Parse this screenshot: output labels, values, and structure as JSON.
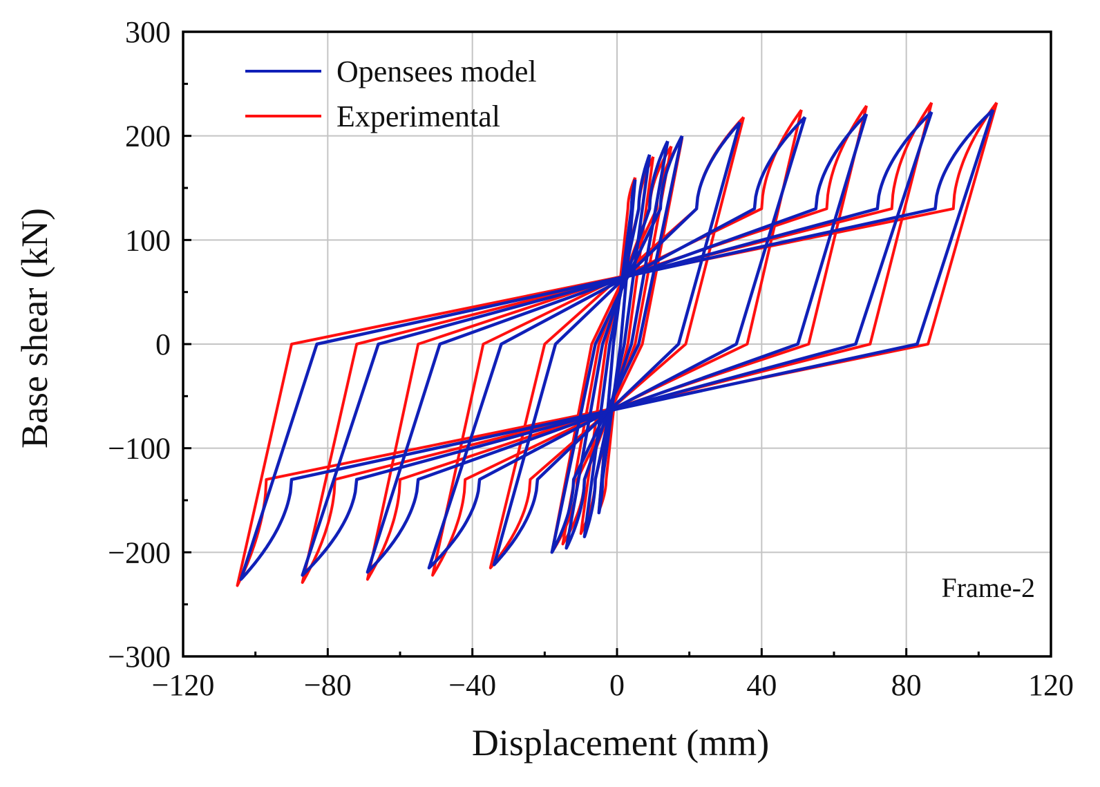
{
  "chart_data": {
    "type": "line",
    "title": "",
    "xlabel": "Displacement (mm)",
    "ylabel": "Base shear (kN)",
    "xlim": [
      -120,
      120
    ],
    "ylim": [
      -300,
      300
    ],
    "xticks": [
      -120,
      -80,
      -40,
      0,
      40,
      80,
      120
    ],
    "yticks": [
      -300,
      -200,
      -100,
      0,
      100,
      200,
      300
    ],
    "xtick_labels": [
      "−120",
      "−80",
      "−40",
      "0",
      "40",
      "80",
      "120"
    ],
    "ytick_labels": [
      "−300",
      "−200",
      "−100",
      "0",
      "100",
      "200",
      "300"
    ],
    "grid": true,
    "legend_position": "top-left",
    "annotation": "Frame-2",
    "colors": {
      "opensees": "#1020b8",
      "experimental": "#ff1010"
    },
    "series": [
      {
        "name": "Opensees model",
        "color": "#1020b8",
        "loops": [
          {
            "amp": 5,
            "pos_peak": 158,
            "neg_peak": -162,
            "pos_zero": 1,
            "neg_zero": -1,
            "pos_knee": 4,
            "neg_knee": -4,
            "pos_at_zero": 130,
            "neg_at_zero": -135
          },
          {
            "amp": 9,
            "pos_peak": 182,
            "neg_peak": -185,
            "pos_zero": 2,
            "neg_zero": -2,
            "pos_knee": 6,
            "neg_knee": -6,
            "pos_at_zero": 136,
            "neg_at_zero": -140
          },
          {
            "amp": 14,
            "pos_peak": 195,
            "neg_peak": -196,
            "pos_zero": 4,
            "neg_zero": -4,
            "pos_knee": 9,
            "neg_knee": -9,
            "pos_at_zero": 140,
            "neg_at_zero": -143
          },
          {
            "amp": 18,
            "pos_peak": 200,
            "neg_peak": -200,
            "pos_zero": 6,
            "neg_zero": -6,
            "pos_knee": 12,
            "neg_knee": -12,
            "pos_at_zero": 142,
            "neg_at_zero": -145
          },
          {
            "amp": 34,
            "pos_peak": 213,
            "neg_peak": -212,
            "pos_zero": 17,
            "neg_zero": -17,
            "pos_knee": 22,
            "neg_knee": -22,
            "pos_at_zero": 145,
            "neg_at_zero": -148
          },
          {
            "amp": 52,
            "pos_peak": 218,
            "neg_peak": -215,
            "pos_zero": 33,
            "neg_zero": -32,
            "pos_knee": 38,
            "neg_knee": -38,
            "pos_at_zero": 146,
            "neg_at_zero": -150
          },
          {
            "amp": 69,
            "pos_peak": 221,
            "neg_peak": -219,
            "pos_zero": 50,
            "neg_zero": -49,
            "pos_knee": 55,
            "neg_knee": -55,
            "pos_at_zero": 147,
            "neg_at_zero": -150
          },
          {
            "amp": 87,
            "pos_peak": 223,
            "neg_peak": -222,
            "pos_zero": 66,
            "neg_zero": -66,
            "pos_knee": 72,
            "neg_knee": -72,
            "pos_at_zero": 148,
            "neg_at_zero": -151
          },
          {
            "amp": 104,
            "pos_peak": 225,
            "neg_peak": -226,
            "pos_zero": 83,
            "neg_zero": -83,
            "pos_knee": 88,
            "neg_knee": -90,
            "pos_at_zero": 150,
            "neg_at_zero": -152
          }
        ]
      },
      {
        "name": "Experimental",
        "color": "#ff1010",
        "loops": [
          {
            "amp": 5,
            "pos_peak": 160,
            "neg_peak": -160,
            "pos_zero": 1,
            "neg_zero": -1,
            "pos_knee": 3,
            "neg_knee": -3,
            "pos_at_zero": 110,
            "neg_at_zero": -110
          },
          {
            "amp": 10,
            "pos_peak": 180,
            "neg_peak": -182,
            "pos_zero": 3,
            "neg_zero": -3,
            "pos_knee": 6,
            "neg_knee": -6,
            "pos_at_zero": 112,
            "neg_at_zero": -115
          },
          {
            "amp": 15,
            "pos_peak": 190,
            "neg_peak": -192,
            "pos_zero": 5,
            "neg_zero": -5,
            "pos_knee": 9,
            "neg_knee": -9,
            "pos_at_zero": 115,
            "neg_at_zero": -118
          },
          {
            "amp": 18,
            "pos_peak": 198,
            "neg_peak": -200,
            "pos_zero": 7,
            "neg_zero": -7,
            "pos_knee": 11,
            "neg_knee": -11,
            "pos_at_zero": 118,
            "neg_at_zero": -120
          },
          {
            "amp": 35,
            "pos_peak": 218,
            "neg_peak": -215,
            "pos_zero": 19,
            "neg_zero": -20,
            "pos_knee": 22,
            "neg_knee": -24,
            "pos_at_zero": 125,
            "neg_at_zero": -128
          },
          {
            "amp": 51,
            "pos_peak": 225,
            "neg_peak": -222,
            "pos_zero": 36,
            "neg_zero": -37,
            "pos_knee": 40,
            "neg_knee": -42,
            "pos_at_zero": 128,
            "neg_at_zero": -130
          },
          {
            "amp": 69,
            "pos_peak": 229,
            "neg_peak": -226,
            "pos_zero": 53,
            "neg_zero": -55,
            "pos_knee": 58,
            "neg_knee": -60,
            "pos_at_zero": 130,
            "neg_at_zero": -132
          },
          {
            "amp": 87,
            "pos_peak": 232,
            "neg_peak": -229,
            "pos_zero": 70,
            "neg_zero": -72,
            "pos_knee": 76,
            "neg_knee": -78,
            "pos_at_zero": 131,
            "neg_at_zero": -134
          },
          {
            "amp": 105,
            "pos_peak": 232,
            "neg_peak": -232,
            "pos_zero": 86,
            "neg_zero": -90,
            "pos_knee": 93,
            "neg_knee": -97,
            "pos_at_zero": 132,
            "neg_at_zero": -135
          }
        ]
      }
    ]
  }
}
